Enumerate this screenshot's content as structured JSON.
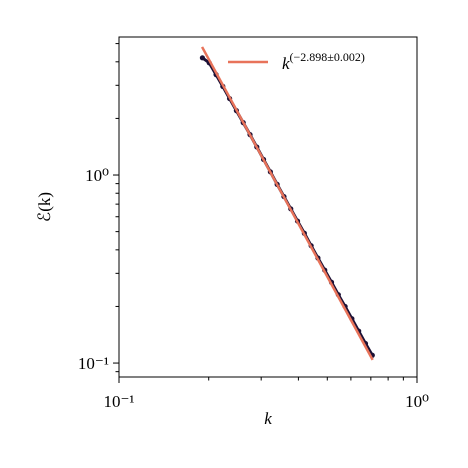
{
  "chart_data": {
    "type": "line",
    "xlabel": "k",
    "ylabel": "ℰ(k)",
    "xscale": "log",
    "yscale": "log",
    "xlim": [
      0.1,
      1
    ],
    "ylim": [
      0.0843,
      5.42
    ],
    "xticks": [
      {
        "value": 0.1,
        "label": "10⁻¹"
      },
      {
        "value": 1,
        "label": "10⁰"
      }
    ],
    "yticks": [
      {
        "value": 0.1,
        "label": "10⁻¹"
      },
      {
        "value": 1,
        "label": "10⁰"
      }
    ],
    "xminorticks": [
      0.2,
      0.3,
      0.4,
      0.5,
      0.6,
      0.7,
      0.8,
      0.9
    ],
    "yminorticks": [
      0.09,
      0.2,
      0.3,
      0.4,
      0.5,
      0.6,
      0.7,
      0.8,
      0.9,
      2,
      3,
      4,
      5
    ],
    "legend": "upper right",
    "series": [
      {
        "color": "#1b1035",
        "x": [
          0.1905,
          0.2008,
          0.2117,
          0.223,
          0.235,
          0.2477,
          0.2611,
          0.2752,
          0.29,
          0.3056,
          0.3221,
          0.3394,
          0.3577,
          0.377,
          0.3973,
          0.4188,
          0.4413,
          0.4651,
          0.4902,
          0.5166,
          0.5445,
          0.5738,
          0.6047,
          0.6373,
          0.6717,
          0.7079
        ],
        "values": [
          4.2,
          3.95,
          3.42,
          2.96,
          2.55,
          2.2,
          1.9,
          1.64,
          1.41,
          1.21,
          1.04,
          0.892,
          0.768,
          0.661,
          0.569,
          0.49,
          0.421,
          0.362,
          0.312,
          0.269,
          0.231,
          0.2,
          0.172,
          0.148,
          0.127,
          0.11
        ]
      },
      {
        "name": "k",
        "name_superscript": "(−2.898±0.002)",
        "color": "#e8735a",
        "x": [
          0.19,
          0.71
        ],
        "values": [
          4.8,
          0.104
        ]
      }
    ]
  }
}
